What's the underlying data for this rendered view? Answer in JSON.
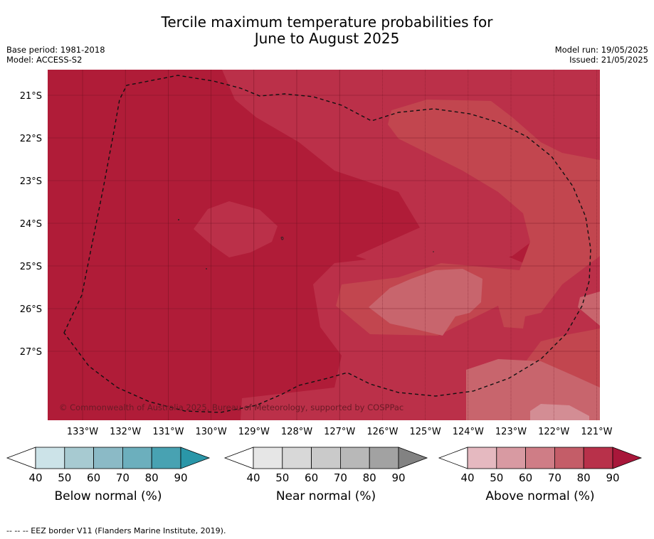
{
  "title_line1": "Tercile maximum temperature probabilities for",
  "title_line2": "June to August 2025",
  "base_period": "Base period: 1981-2018",
  "model": "Model: ACCESS-S2",
  "model_run": "Model run: 19/05/2025",
  "issued": "Issued: 21/05/2025",
  "copyright": "© Commonwealth of Australia 2025, Bureau of Meteorology, supported by COSPPac",
  "footnote": "--  --  -- EEZ border V11 (Flanders Marine Institute, 2019).",
  "map": {
    "lat_labels": [
      "21°S",
      "22°S",
      "23°S",
      "24°S",
      "25°S",
      "26°S",
      "27°S"
    ],
    "lon_labels": [
      "133°W",
      "132°W",
      "131°W",
      "130°W",
      "129°W",
      "128°W",
      "127°W",
      "126°W",
      "125°W",
      "124°W",
      "123°W",
      "122°W",
      "121°W"
    ],
    "colors": {
      "above_90": "#b01c38",
      "above_80": "#bb3049",
      "above_70": "#c2464f",
      "above_60": "#c8656d",
      "above_50": "#d38d94"
    }
  },
  "colorbars": [
    {
      "label": "Below normal (%)",
      "ticks": [
        "40",
        "50",
        "60",
        "70",
        "80",
        "90"
      ],
      "colors": [
        "#cce3e8",
        "#a7cad1",
        "#8bbac6",
        "#6cafbd",
        "#48a2b2"
      ],
      "extend_color": "#2a96a8"
    },
    {
      "label": "Near normal (%)",
      "ticks": [
        "40",
        "50",
        "60",
        "70",
        "80",
        "90"
      ],
      "colors": [
        "#e6e6e6",
        "#d8d8d8",
        "#cacaca",
        "#b8b8b8",
        "#a2a2a2"
      ],
      "extend_color": "#828282"
    },
    {
      "label": "Above normal (%)",
      "ticks": [
        "40",
        "50",
        "60",
        "70",
        "80",
        "90"
      ],
      "colors": [
        "#e5b9c0",
        "#d89aa2",
        "#cf7d86",
        "#c45d68",
        "#b8314a"
      ],
      "extend_color": "#a8173a"
    }
  ]
}
